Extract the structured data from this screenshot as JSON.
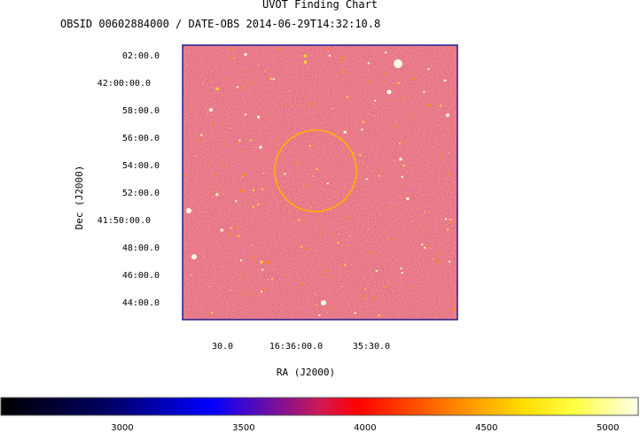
{
  "chart_data": {
    "type": "heatmap",
    "title": "UVOT Finding Chart",
    "subtitle": "OBSID 00602884000 / DATE-OBS 2014-06-29T14:32:10.8",
    "xlabel": "RA (J2000)",
    "ylabel": "Dec (J2000)",
    "x_ticks": [
      "30.0",
      "16:36:00.0",
      "35:30.0"
    ],
    "y_ticks": [
      "02:00.0",
      "42:00:00.0",
      "58:00.0",
      "56:00.0",
      "54:00.0",
      "52:00.0",
      "41:50:00.0",
      "48:00.0",
      "46:00.0",
      "44:00.0"
    ],
    "colorbar": {
      "ticks": [
        3000,
        3500,
        4000,
        4500,
        5000
      ],
      "tick_labels": [
        "3000",
        "3500",
        "4000",
        "4500",
        "5000"
      ],
      "range": [
        2500,
        5125
      ]
    },
    "circle_color": "#ffb000",
    "frame_color": "#1d1d8f"
  }
}
